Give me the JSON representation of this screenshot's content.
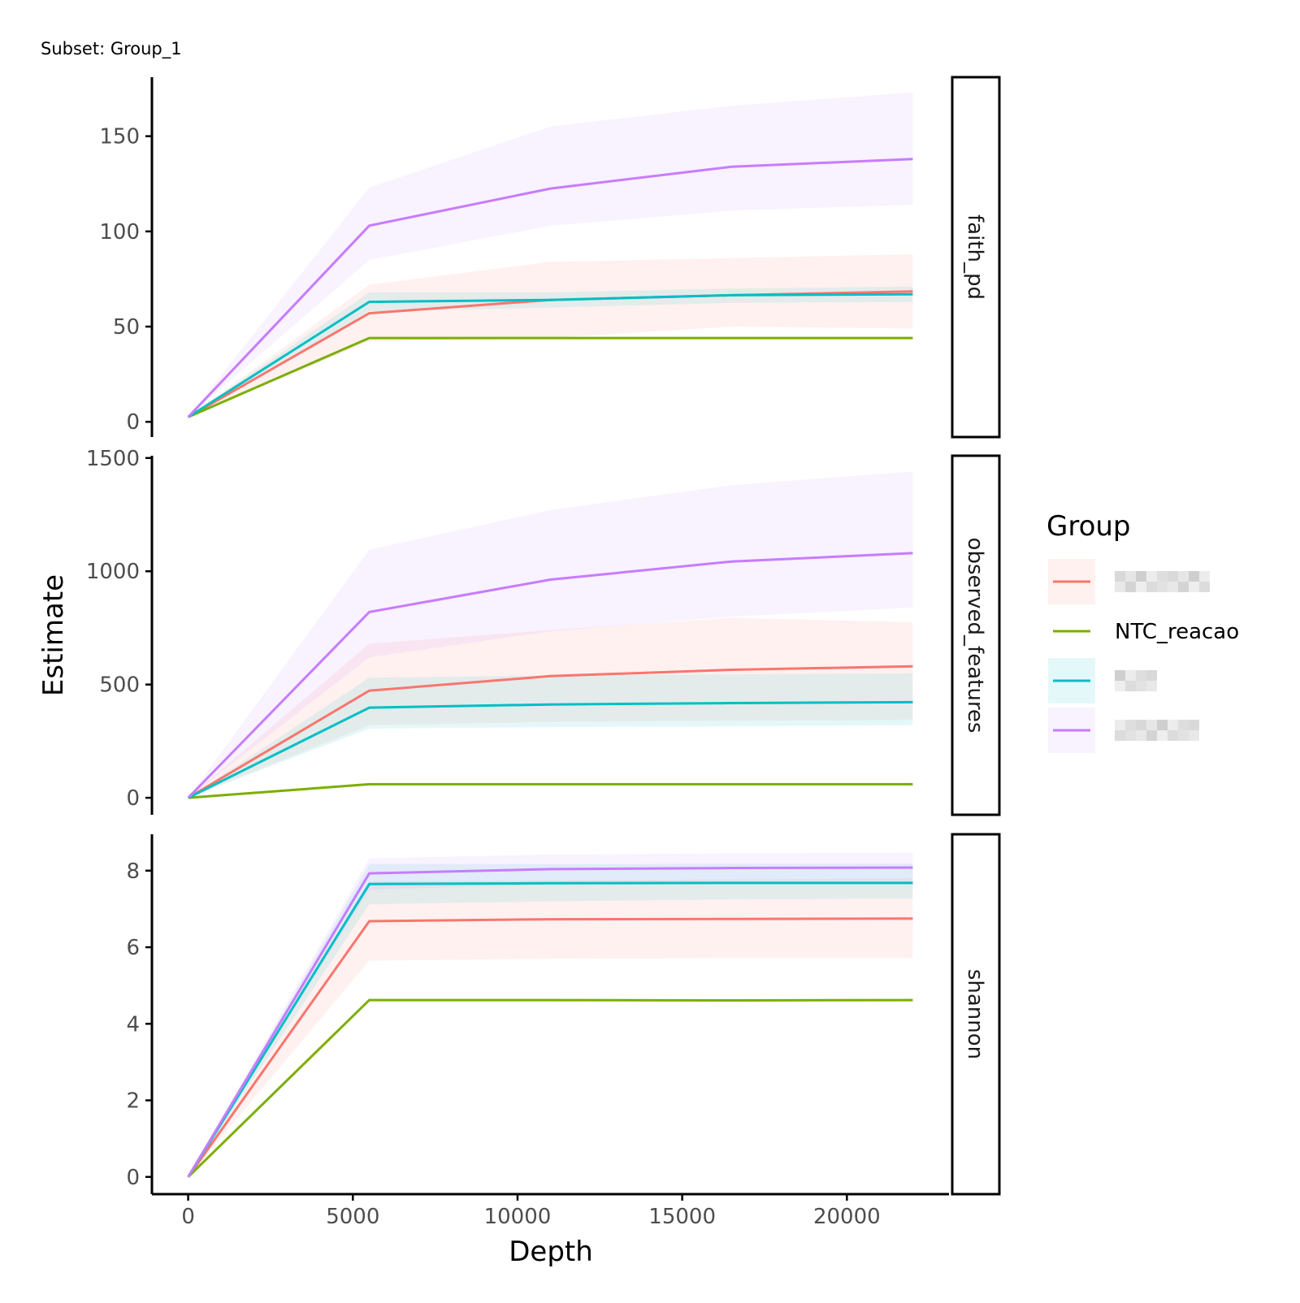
{
  "subtitle": "Subset: Group_1",
  "chart_data": {
    "type": "line",
    "facet_by": "metric",
    "x": [
      0,
      5500,
      11000,
      16500,
      22000
    ],
    "xlabel": "Depth",
    "ylabel": "Estimate",
    "xlim": [
      -1100,
      23100
    ],
    "x_ticks": [
      0,
      5000,
      10000,
      15000,
      20000
    ],
    "grid": false,
    "legend": {
      "title": "Group",
      "position": "right",
      "entries": [
        {
          "label": "",
          "color": "#F8766D",
          "redacted": true
        },
        {
          "label": "NTC_reacao",
          "color": "#7CAE00",
          "redacted": false
        },
        {
          "label": "",
          "color": "#00BFC4",
          "redacted": true
        },
        {
          "label": "",
          "color": "#C77CFF",
          "redacted": true
        }
      ]
    },
    "panels": [
      {
        "strip": "faith_pd",
        "ylim": [
          -8,
          181
        ],
        "y_ticks": [
          0,
          50,
          100,
          150
        ],
        "series": [
          {
            "color": "#F8766D",
            "values": [
              2.5,
              57,
              64,
              66.5,
              68.5
            ],
            "lower": [
              2.5,
              42,
              44,
              50,
              49
            ],
            "upper": [
              2.5,
              72,
              84,
              86,
              88
            ]
          },
          {
            "color": "#7CAE00",
            "values": [
              2.5,
              44,
              44,
              44,
              44
            ]
          },
          {
            "color": "#00BFC4",
            "values": [
              2.5,
              63,
              64,
              66.5,
              67
            ],
            "lower": [
              2.5,
              58,
              60,
              62.5,
              63
            ],
            "upper": [
              2.5,
              68,
              68,
              70,
              71
            ]
          },
          {
            "color": "#C77CFF",
            "values": [
              2.5,
              103,
              122.5,
              134,
              138
            ],
            "lower": [
              2.5,
              85,
              103,
              111,
              114
            ],
            "upper": [
              2.5,
              123,
              155,
              166,
              173
            ]
          }
        ]
      },
      {
        "strip": "observed_features",
        "ylim": [
          -75,
          1510
        ],
        "y_ticks": [
          0,
          500,
          1000,
          1500
        ],
        "series": [
          {
            "color": "#F8766D",
            "values": [
              0,
              473,
              537,
              565,
              580
            ],
            "lower": [
              0,
              320,
              335,
              340,
              345
            ],
            "upper": [
              0,
              680,
              740,
              795,
              775
            ]
          },
          {
            "color": "#7CAE00",
            "values": [
              0,
              60,
              60,
              60,
              60
            ]
          },
          {
            "color": "#00BFC4",
            "values": [
              0,
              398,
              412,
              418,
              422
            ],
            "lower": [
              0,
              305,
              312,
              315,
              320
            ],
            "upper": [
              0,
              530,
              540,
              545,
              550
            ]
          },
          {
            "color": "#C77CFF",
            "values": [
              0,
              820,
              963,
              1043,
              1080
            ],
            "lower": [
              0,
              620,
              735,
              800,
              840
            ],
            "upper": [
              0,
              1095,
              1270,
              1380,
              1440
            ]
          }
        ]
      },
      {
        "strip": "shannon",
        "ylim": [
          -0.45,
          8.95
        ],
        "y_ticks": [
          0,
          2,
          4,
          6,
          8
        ],
        "series": [
          {
            "color": "#F8766D",
            "values": [
              0,
              6.68,
              6.73,
              6.74,
              6.75
            ],
            "lower": [
              0,
              5.65,
              5.7,
              5.72,
              5.72
            ],
            "upper": [
              0,
              7.72,
              7.75,
              7.77,
              7.8
            ]
          },
          {
            "color": "#7CAE00",
            "values": [
              0,
              4.62,
              4.62,
              4.61,
              4.62
            ]
          },
          {
            "color": "#00BFC4",
            "values": [
              0,
              7.65,
              7.67,
              7.68,
              7.68
            ],
            "lower": [
              0,
              7.12,
              7.2,
              7.25,
              7.27
            ],
            "upper": [
              0,
              8.17,
              8.17,
              8.18,
              8.18
            ]
          },
          {
            "color": "#C77CFF",
            "values": [
              0,
              7.93,
              8.04,
              8.07,
              8.08
            ],
            "lower": [
              0,
              7.5,
              7.65,
              7.68,
              7.7
            ],
            "upper": [
              0,
              8.32,
              8.42,
              8.45,
              8.47
            ]
          }
        ]
      }
    ]
  }
}
